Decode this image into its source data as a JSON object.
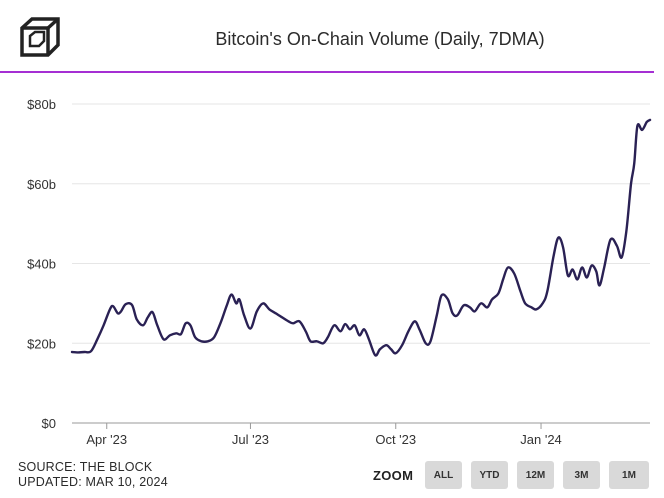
{
  "header": {
    "title": "Bitcoin's On-Chain Volume (Daily, 7DMA)",
    "accent_color": "#a52fd3",
    "logo_icon": "cube-logo-icon"
  },
  "footer": {
    "source": "SOURCE: THE BLOCK",
    "updated": "UPDATED: MAR 10, 2024"
  },
  "zoom": {
    "label": "ZOOM",
    "buttons": [
      "ALL",
      "YTD",
      "12M",
      "3M",
      "1M"
    ]
  },
  "chart_data": {
    "type": "line",
    "title": "Bitcoin's On-Chain Volume (Daily, 7DMA)",
    "y_unit": "$ billions",
    "ylim": [
      0,
      80
    ],
    "y_ticks": [
      {
        "value": 0,
        "label": "$0"
      },
      {
        "value": 20,
        "label": "$20b"
      },
      {
        "value": 40,
        "label": "$40b"
      },
      {
        "value": 60,
        "label": "$60b"
      },
      {
        "value": 80,
        "label": "$80b"
      }
    ],
    "x_range": [
      "2023-03-10",
      "2024-03-10"
    ],
    "x_ticks": [
      {
        "date": "2023-04-01",
        "label": "Apr '23"
      },
      {
        "date": "2023-07-01",
        "label": "Jul '23"
      },
      {
        "date": "2023-10-01",
        "label": "Oct '23"
      },
      {
        "date": "2024-01-01",
        "label": "Jan '24"
      }
    ],
    "grid": true,
    "line_color": "#2a2154",
    "points": [
      [
        "2023-03-10",
        17.8
      ],
      [
        "2023-03-14",
        17.7
      ],
      [
        "2023-03-18",
        17.8
      ],
      [
        "2023-03-22",
        18.0
      ],
      [
        "2023-03-26",
        21.0
      ],
      [
        "2023-03-30",
        24.5
      ],
      [
        "2023-04-03",
        28.5
      ],
      [
        "2023-04-05",
        29.3
      ],
      [
        "2023-04-08",
        27.5
      ],
      [
        "2023-04-10",
        28.0
      ],
      [
        "2023-04-13",
        29.8
      ],
      [
        "2023-04-17",
        29.6
      ],
      [
        "2023-04-20",
        26.0
      ],
      [
        "2023-04-24",
        24.5
      ],
      [
        "2023-04-27",
        26.5
      ],
      [
        "2023-04-30",
        27.8
      ],
      [
        "2023-05-03",
        24.5
      ],
      [
        "2023-05-07",
        21.0
      ],
      [
        "2023-05-11",
        22.0
      ],
      [
        "2023-05-15",
        22.5
      ],
      [
        "2023-05-18",
        22.3
      ],
      [
        "2023-05-21",
        25.0
      ],
      [
        "2023-05-24",
        24.5
      ],
      [
        "2023-05-27",
        21.5
      ],
      [
        "2023-05-31",
        20.5
      ],
      [
        "2023-06-04",
        20.5
      ],
      [
        "2023-06-08",
        21.5
      ],
      [
        "2023-06-12",
        25.0
      ],
      [
        "2023-06-16",
        29.5
      ],
      [
        "2023-06-19",
        32.2
      ],
      [
        "2023-06-22",
        30.0
      ],
      [
        "2023-06-24",
        31.0
      ],
      [
        "2023-06-27",
        27.0
      ],
      [
        "2023-07-01",
        23.7
      ],
      [
        "2023-07-05",
        28.0
      ],
      [
        "2023-07-09",
        30.0
      ],
      [
        "2023-07-13",
        28.5
      ],
      [
        "2023-07-17",
        27.5
      ],
      [
        "2023-07-21",
        26.5
      ],
      [
        "2023-07-25",
        25.5
      ],
      [
        "2023-07-28",
        25.0
      ],
      [
        "2023-08-01",
        25.5
      ],
      [
        "2023-08-05",
        23.0
      ],
      [
        "2023-08-08",
        20.5
      ],
      [
        "2023-08-12",
        20.5
      ],
      [
        "2023-08-16",
        20.0
      ],
      [
        "2023-08-19",
        21.5
      ],
      [
        "2023-08-23",
        24.5
      ],
      [
        "2023-08-27",
        23.0
      ],
      [
        "2023-08-30",
        24.8
      ],
      [
        "2023-09-02",
        23.5
      ],
      [
        "2023-09-05",
        24.5
      ],
      [
        "2023-09-08",
        22.0
      ],
      [
        "2023-09-11",
        23.5
      ],
      [
        "2023-09-14",
        21.0
      ],
      [
        "2023-09-18",
        17.0
      ],
      [
        "2023-09-21",
        18.5
      ],
      [
        "2023-09-25",
        19.5
      ],
      [
        "2023-09-28",
        18.5
      ],
      [
        "2023-10-01",
        17.5
      ],
      [
        "2023-10-05",
        19.5
      ],
      [
        "2023-10-09",
        23.0
      ],
      [
        "2023-10-13",
        25.5
      ],
      [
        "2023-10-16",
        23.5
      ],
      [
        "2023-10-20",
        20.0
      ],
      [
        "2023-10-23",
        20.5
      ],
      [
        "2023-10-27",
        27.0
      ],
      [
        "2023-10-30",
        32.0
      ],
      [
        "2023-11-03",
        31.0
      ],
      [
        "2023-11-06",
        27.5
      ],
      [
        "2023-11-09",
        27.0
      ],
      [
        "2023-11-13",
        29.5
      ],
      [
        "2023-11-17",
        29.0
      ],
      [
        "2023-11-20",
        28.0
      ],
      [
        "2023-11-24",
        30.0
      ],
      [
        "2023-11-28",
        29.0
      ],
      [
        "2023-12-01",
        31.0
      ],
      [
        "2023-12-05",
        32.5
      ],
      [
        "2023-12-08",
        36.0
      ],
      [
        "2023-12-11",
        39.0
      ],
      [
        "2023-12-15",
        37.5
      ],
      [
        "2023-12-19",
        33.0
      ],
      [
        "2023-12-22",
        30.0
      ],
      [
        "2023-12-26",
        29.0
      ],
      [
        "2023-12-29",
        28.5
      ],
      [
        "2024-01-02",
        30.0
      ],
      [
        "2024-01-05",
        33.0
      ],
      [
        "2024-01-09",
        42.0
      ],
      [
        "2024-01-12",
        46.5
      ],
      [
        "2024-01-15",
        44.0
      ],
      [
        "2024-01-18",
        37.0
      ],
      [
        "2024-01-21",
        38.5
      ],
      [
        "2024-01-24",
        36.0
      ],
      [
        "2024-01-27",
        39.0
      ],
      [
        "2024-01-30",
        36.5
      ],
      [
        "2024-02-02",
        39.5
      ],
      [
        "2024-02-05",
        38.0
      ],
      [
        "2024-02-07",
        34.5
      ],
      [
        "2024-02-10",
        39.0
      ],
      [
        "2024-02-14",
        46.0
      ],
      [
        "2024-02-18",
        44.5
      ],
      [
        "2024-02-21",
        41.5
      ],
      [
        "2024-02-24",
        48.0
      ],
      [
        "2024-02-27",
        60.0
      ],
      [
        "2024-02-29",
        65.0
      ],
      [
        "2024-03-02",
        74.5
      ],
      [
        "2024-03-05",
        73.5
      ],
      [
        "2024-03-08",
        75.5
      ],
      [
        "2024-03-10",
        76.0
      ]
    ]
  }
}
